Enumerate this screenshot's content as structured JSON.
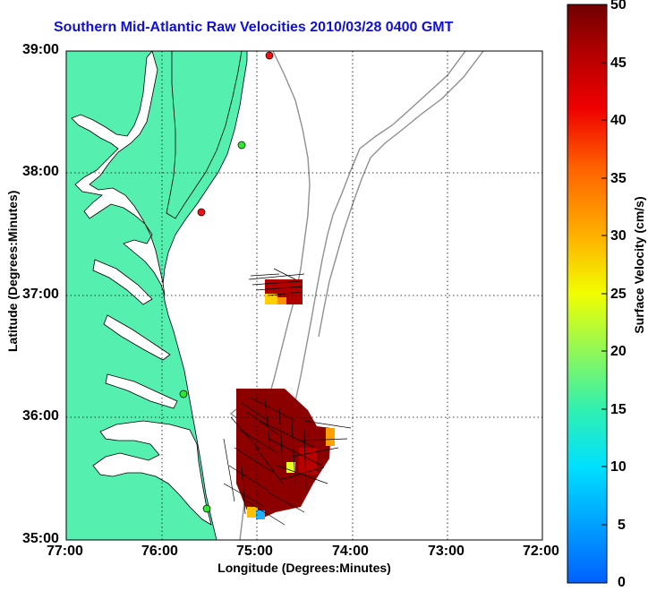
{
  "title": "Southern Mid-Atlantic Raw Velocities 2010/03/28 0400 GMT",
  "xlabel": "Longitude (Degrees:Minutes)",
  "ylabel": "Latitude (Degrees:Minutes)",
  "x_ticks": [
    "77:00",
    "76:00",
    "75:00",
    "74:00",
    "73:00",
    "72:00"
  ],
  "y_ticks": [
    "39:00",
    "38:00",
    "37:00",
    "36:00",
    "35:00"
  ],
  "colorbar": {
    "label": "Surface Velocity (cm/s)",
    "ticks": [
      "0",
      "5",
      "10",
      "15",
      "20",
      "25",
      "30",
      "35",
      "40",
      "45",
      "50"
    ],
    "range": [
      0,
      50
    ]
  },
  "colors": {
    "land": "#55f0b0",
    "water": "#ffffff",
    "coast": "#000000",
    "bathymetry": "#909090",
    "grid": "#000000",
    "title": "#1010d8",
    "station_green": "#2ee82e",
    "station_red": "#ee1111"
  },
  "map": {
    "lon_range": [
      -77,
      -72
    ],
    "lat_range": [
      35,
      39
    ],
    "stations": [
      {
        "lon": -74.87,
        "lat": 38.96,
        "color": "red"
      },
      {
        "lon": -75.1,
        "lat": 38.22,
        "color": "green"
      },
      {
        "lon": -75.57,
        "lat": 37.7,
        "color": "red"
      },
      {
        "lon": -75.78,
        "lat": 36.18,
        "color": "green"
      },
      {
        "lon": -75.5,
        "lat": 35.25,
        "color": "green"
      }
    ]
  }
}
